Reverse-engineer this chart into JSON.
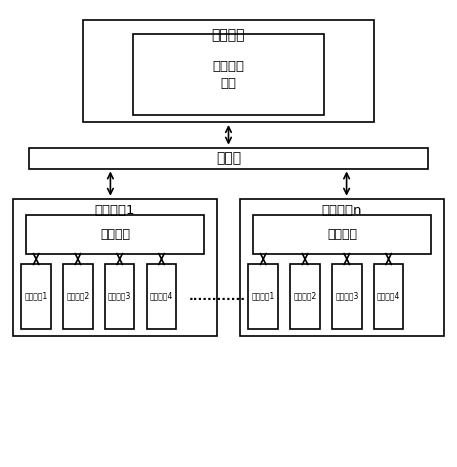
{
  "bg_color": "#ffffff",
  "box_edge_color": "#000000",
  "box_face_color": "#ffffff",
  "text_color": "#000000",
  "arrow_color": "#000000",
  "title_host": "测试主机",
  "label_plan": "功率测试\n方案",
  "label_switch": "交换机",
  "label_slave1": "测试从机1",
  "label_slaven": "测试从机n",
  "label_mcu": "微控制器",
  "label_modules": [
    "辨识模组1",
    "辨识模组2",
    "辨识模组3",
    "辨识模组4"
  ],
  "dots": "............",
  "figsize": [
    4.57,
    4.67
  ],
  "dpi": 100
}
